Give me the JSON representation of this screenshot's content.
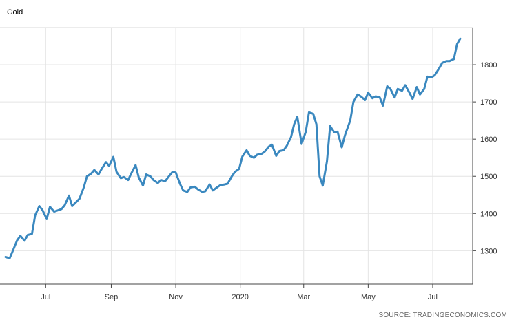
{
  "chart_data": {
    "type": "line",
    "title": "Gold",
    "source": "SOURCE: TRADINGECONOMICS.COM",
    "xlabel": "",
    "ylabel": "",
    "x_tick_labels": [
      "Jul",
      "Sep",
      "Nov",
      "2020",
      "Mar",
      "May",
      "Jul"
    ],
    "x_tick_dates": [
      "2019-07-01",
      "2019-09-01",
      "2019-11-01",
      "2020-01-01",
      "2020-03-01",
      "2020-05-01",
      "2020-07-01"
    ],
    "y_ticks": [
      1300,
      1400,
      1500,
      1600,
      1700,
      1800
    ],
    "y_axis_side": "right",
    "ylim": [
      1210,
      1900
    ],
    "xlim": [
      "2019-05-24",
      "2020-07-31"
    ],
    "grid": true,
    "line_color": "#3a88bf",
    "series": [
      {
        "name": "",
        "x": [
          "2019-05-24",
          "2019-05-28",
          "2019-05-31",
          "2019-06-04",
          "2019-06-07",
          "2019-06-11",
          "2019-06-14",
          "2019-06-18",
          "2019-06-21",
          "2019-06-25",
          "2019-06-28",
          "2019-07-02",
          "2019-07-05",
          "2019-07-09",
          "2019-07-12",
          "2019-07-16",
          "2019-07-19",
          "2019-07-23",
          "2019-07-26",
          "2019-07-30",
          "2019-08-02",
          "2019-08-06",
          "2019-08-09",
          "2019-08-13",
          "2019-08-16",
          "2019-08-20",
          "2019-08-23",
          "2019-08-27",
          "2019-08-30",
          "2019-09-03",
          "2019-09-06",
          "2019-09-10",
          "2019-09-13",
          "2019-09-17",
          "2019-09-20",
          "2019-09-24",
          "2019-09-27",
          "2019-10-01",
          "2019-10-04",
          "2019-10-08",
          "2019-10-11",
          "2019-10-15",
          "2019-10-18",
          "2019-10-22",
          "2019-10-25",
          "2019-10-29",
          "2019-11-01",
          "2019-11-05",
          "2019-11-08",
          "2019-11-12",
          "2019-11-15",
          "2019-11-19",
          "2019-11-22",
          "2019-11-26",
          "2019-11-29",
          "2019-12-03",
          "2019-12-06",
          "2019-12-10",
          "2019-12-13",
          "2019-12-17",
          "2019-12-20",
          "2019-12-24",
          "2019-12-27",
          "2019-12-31",
          "2020-01-03",
          "2020-01-07",
          "2020-01-10",
          "2020-01-14",
          "2020-01-17",
          "2020-01-21",
          "2020-01-24",
          "2020-01-28",
          "2020-01-31",
          "2020-02-04",
          "2020-02-07",
          "2020-02-11",
          "2020-02-14",
          "2020-02-18",
          "2020-02-21",
          "2020-02-24",
          "2020-02-28",
          "2020-03-03",
          "2020-03-06",
          "2020-03-10",
          "2020-03-13",
          "2020-03-16",
          "2020-03-19",
          "2020-03-23",
          "2020-03-26",
          "2020-03-30",
          "2020-04-02",
          "2020-04-06",
          "2020-04-09",
          "2020-04-14",
          "2020-04-17",
          "2020-04-21",
          "2020-04-24",
          "2020-04-28",
          "2020-05-01",
          "2020-05-05",
          "2020-05-08",
          "2020-05-12",
          "2020-05-15",
          "2020-05-19",
          "2020-05-22",
          "2020-05-26",
          "2020-05-29",
          "2020-06-02",
          "2020-06-05",
          "2020-06-09",
          "2020-06-12",
          "2020-06-16",
          "2020-06-19",
          "2020-06-23",
          "2020-06-26",
          "2020-06-30",
          "2020-07-03",
          "2020-07-07",
          "2020-07-10",
          "2020-07-14",
          "2020-07-17",
          "2020-07-21",
          "2020-07-24",
          "2020-07-27"
        ],
        "values": [
          1283,
          1280,
          1300,
          1328,
          1340,
          1327,
          1342,
          1345,
          1395,
          1420,
          1409,
          1385,
          1418,
          1405,
          1408,
          1412,
          1422,
          1448,
          1420,
          1431,
          1440,
          1470,
          1500,
          1507,
          1517,
          1505,
          1520,
          1538,
          1528,
          1552,
          1512,
          1495,
          1498,
          1490,
          1508,
          1530,
          1497,
          1475,
          1505,
          1500,
          1490,
          1482,
          1490,
          1487,
          1498,
          1512,
          1510,
          1480,
          1462,
          1458,
          1470,
          1472,
          1465,
          1458,
          1460,
          1478,
          1462,
          1470,
          1476,
          1478,
          1480,
          1500,
          1512,
          1520,
          1553,
          1570,
          1555,
          1550,
          1558,
          1560,
          1566,
          1580,
          1585,
          1555,
          1568,
          1570,
          1582,
          1605,
          1640,
          1660,
          1587,
          1620,
          1672,
          1668,
          1640,
          1500,
          1475,
          1540,
          1635,
          1618,
          1620,
          1578,
          1610,
          1650,
          1700,
          1720,
          1715,
          1705,
          1725,
          1710,
          1715,
          1712,
          1690,
          1742,
          1735,
          1712,
          1735,
          1730,
          1745,
          1725,
          1708,
          1740,
          1720,
          1735,
          1768,
          1766,
          1772,
          1790,
          1805,
          1810,
          1810,
          1815,
          1855,
          1870
        ]
      }
    ]
  }
}
